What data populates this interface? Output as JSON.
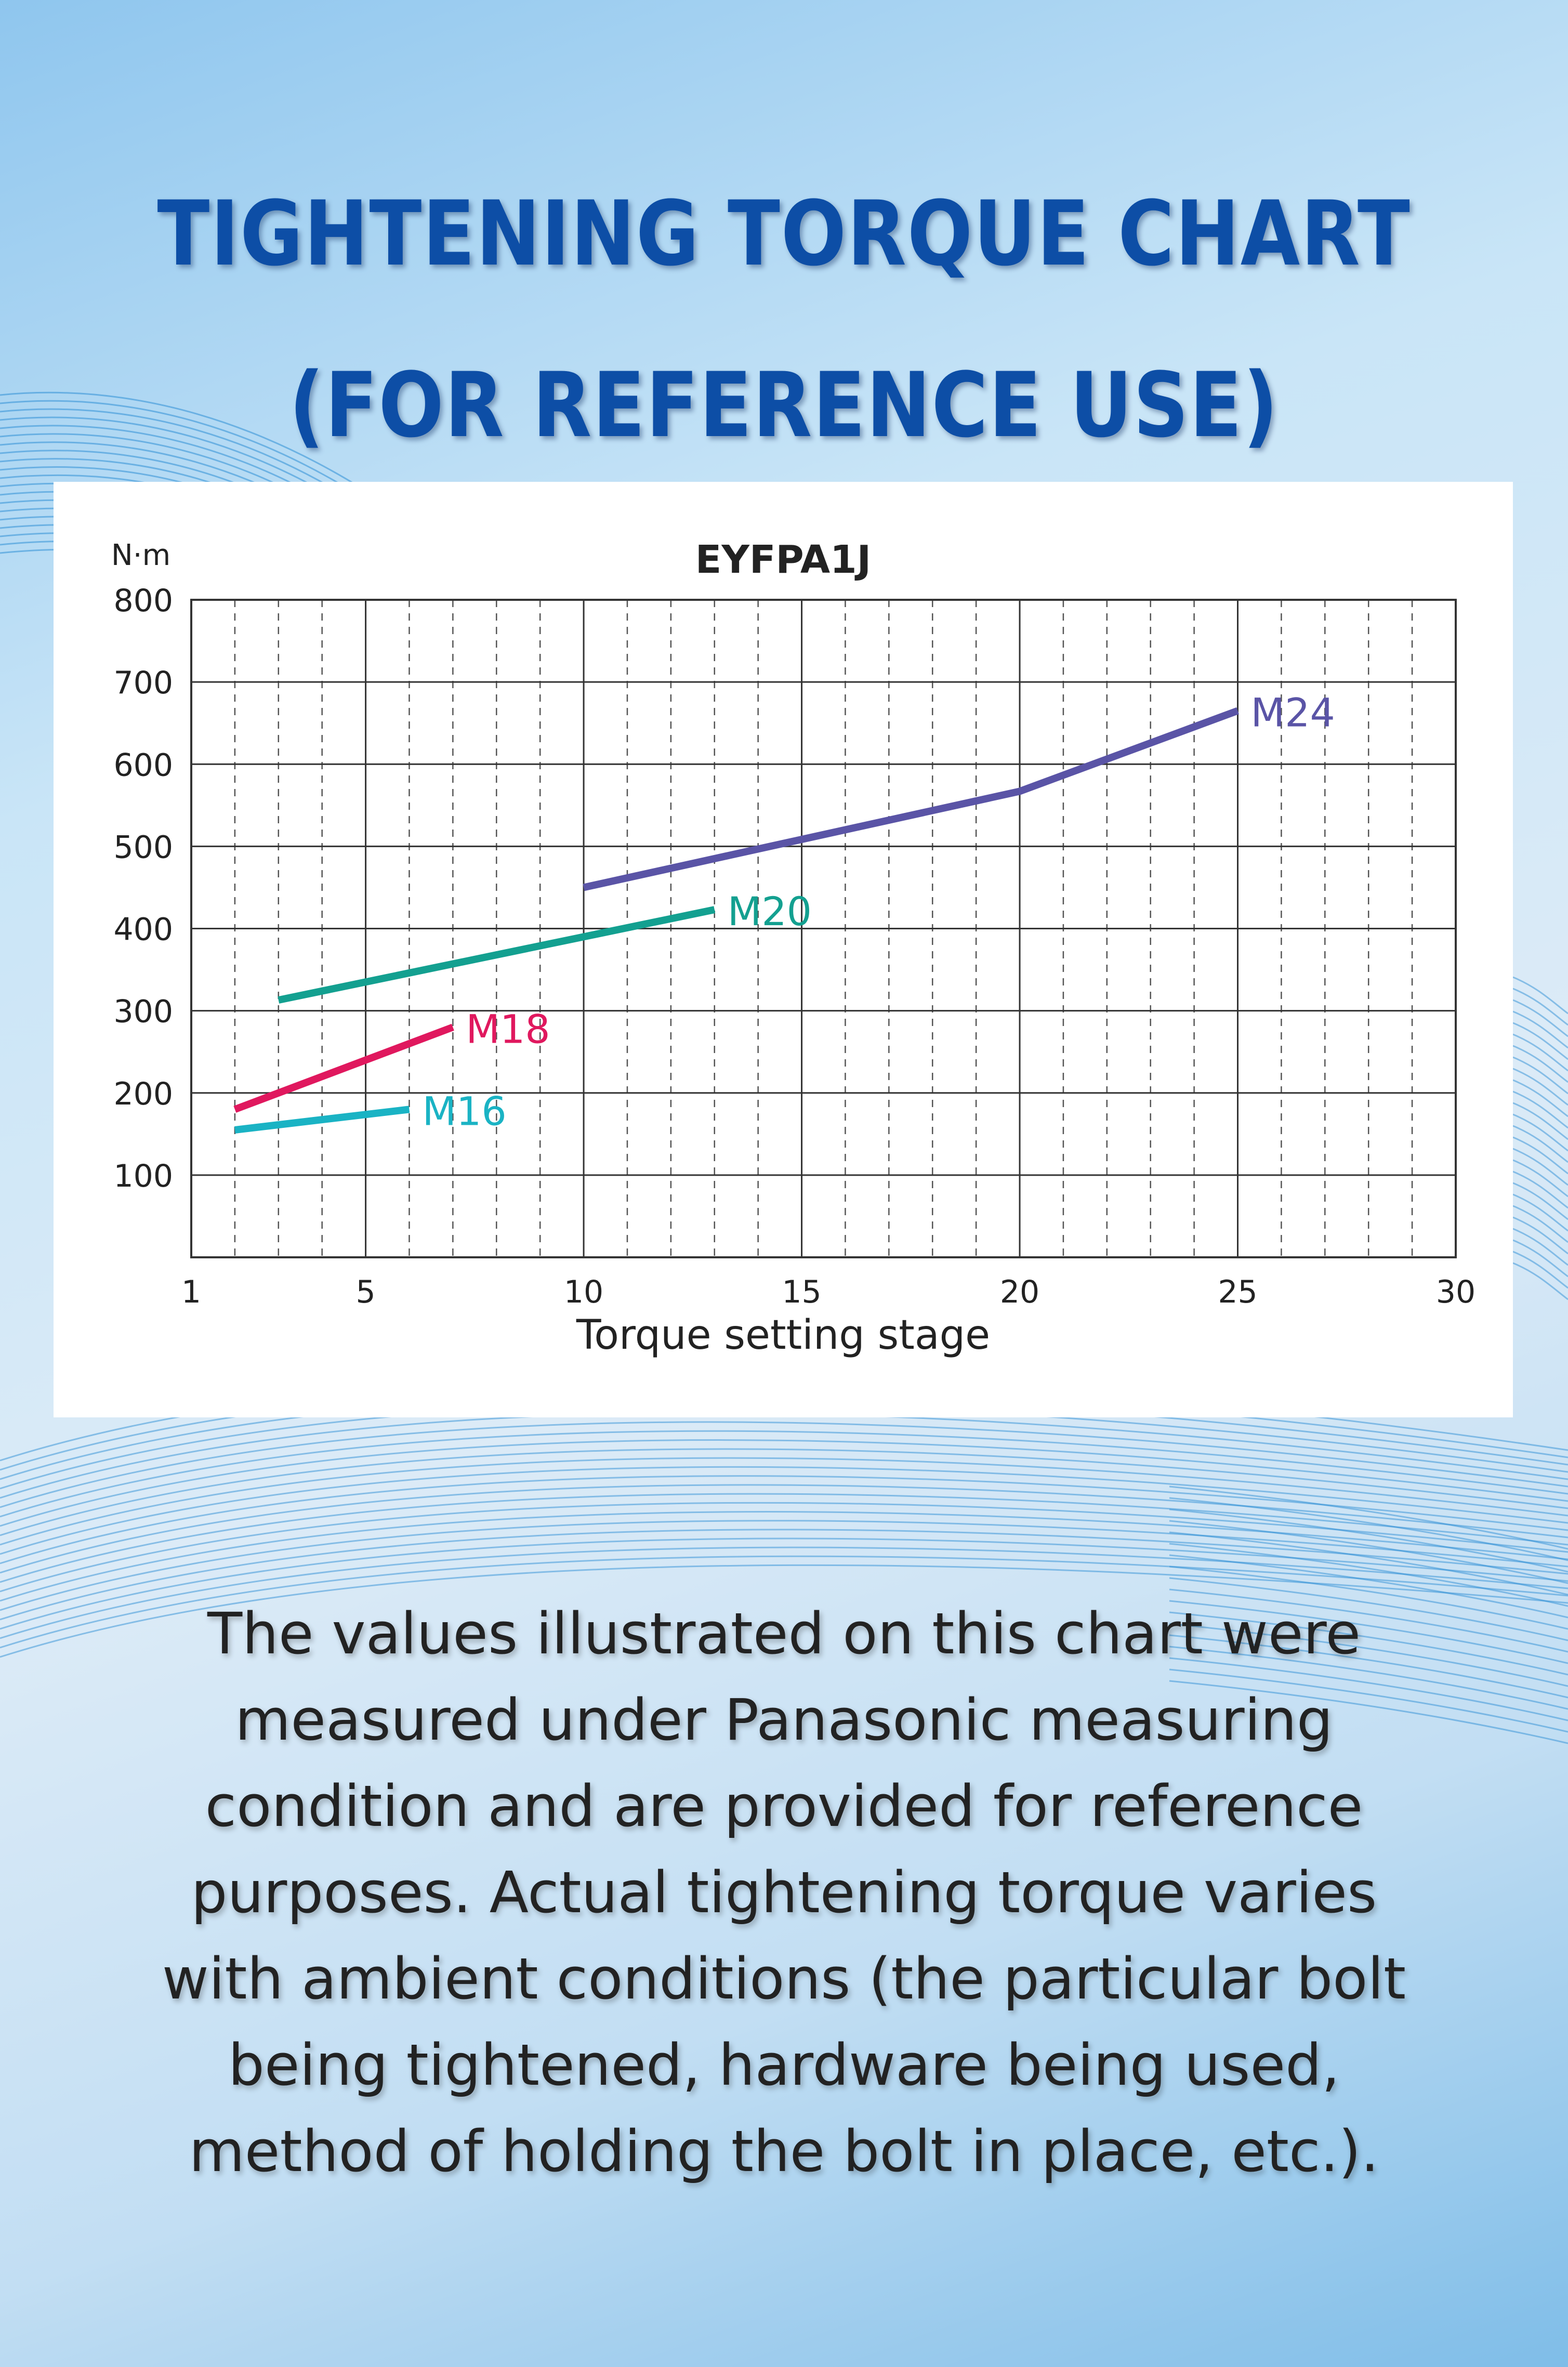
{
  "header": {
    "title_lines": [
      "TIGHTENING TORQUE CHART",
      "(FOR REFERENCE USE)"
    ]
  },
  "chart_data": {
    "type": "line",
    "title": "EYFPA1J",
    "xlabel": "Torque setting stage",
    "ylabel": "N·m",
    "xlim": [
      1,
      30
    ],
    "ylim": [
      0,
      800
    ],
    "x_ticks": [
      1,
      5,
      10,
      15,
      20,
      25,
      30
    ],
    "y_ticks": [
      100,
      200,
      300,
      400,
      500,
      600,
      700,
      800
    ],
    "grid": "solid horizontal lines every 100; dashed vertical lines every 1 stage",
    "series": [
      {
        "name": "M16",
        "color": "#1ab3c4",
        "x": [
          2,
          6
        ],
        "y": [
          155,
          180
        ]
      },
      {
        "name": "M18",
        "color": "#e0185e",
        "x": [
          2,
          7
        ],
        "y": [
          180,
          280
        ]
      },
      {
        "name": "M20",
        "color": "#13a090",
        "x": [
          3,
          13
        ],
        "y": [
          313,
          423
        ]
      },
      {
        "name": "M24",
        "color": "#5a54a6",
        "x": [
          10,
          20,
          25
        ],
        "y": [
          450,
          567,
          665
        ]
      }
    ]
  },
  "note": {
    "lines": [
      "The values illustrated on this chart were",
      "measured under Panasonic measuring",
      "condition and are provided for reference",
      "purposes. Actual tightening torque varies",
      "with ambient conditions (the particular bolt",
      "being tightened, hardware being used,",
      "method of holding the bolt in place, etc.)."
    ]
  },
  "colors": {
    "heading": "#0d4ea6",
    "wave": "#2f8fd6",
    "panel": "#ffffff"
  }
}
